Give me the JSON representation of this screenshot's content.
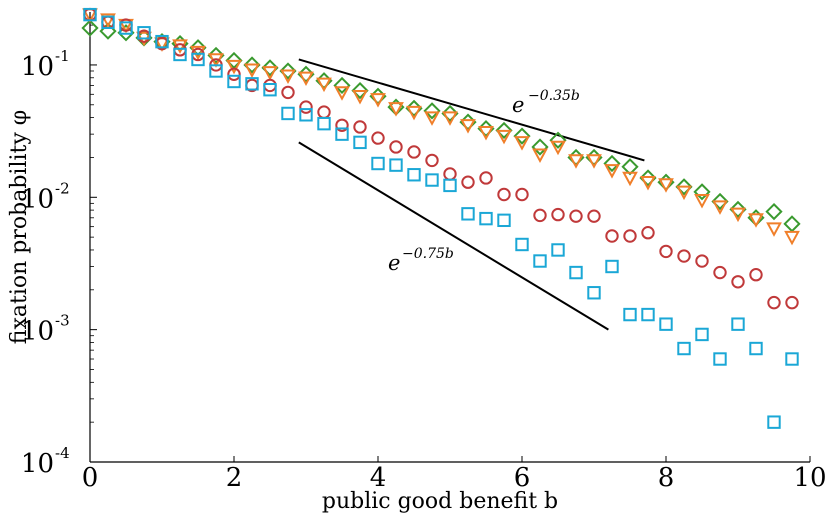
{
  "chart_data": {
    "type": "scatter",
    "xlabel": "public good benefit b",
    "ylabel": "fixation probability φ",
    "xlim": [
      0,
      10
    ],
    "ylim_log10": [
      -4,
      -0.6
    ],
    "yscale": "log",
    "grid": false,
    "x_ticks": [
      "0",
      "2",
      "4",
      "6",
      "8",
      "10"
    ],
    "y_ticks": [
      {
        "base": "10",
        "exp": "-1"
      },
      {
        "base": "10",
        "exp": "-2"
      },
      {
        "base": "10",
        "exp": "-3"
      },
      {
        "base": "10",
        "exp": "-4"
      }
    ],
    "series": [
      {
        "marker": "diamond",
        "color": "#3a9a2f",
        "points": [
          [
            0,
            0.19
          ],
          [
            0.25,
            0.18
          ],
          [
            0.5,
            0.175
          ],
          [
            0.75,
            0.16
          ],
          [
            1,
            0.15
          ],
          [
            1.25,
            0.145
          ],
          [
            1.5,
            0.135
          ],
          [
            1.75,
            0.118
          ],
          [
            2,
            0.108
          ],
          [
            2.25,
            0.1
          ],
          [
            2.5,
            0.095
          ],
          [
            2.75,
            0.09
          ],
          [
            3,
            0.085
          ],
          [
            3.25,
            0.076
          ],
          [
            3.5,
            0.07
          ],
          [
            3.75,
            0.064
          ],
          [
            4,
            0.058
          ],
          [
            4.25,
            0.048
          ],
          [
            4.5,
            0.047
          ],
          [
            4.75,
            0.045
          ],
          [
            5,
            0.043
          ],
          [
            5.25,
            0.037
          ],
          [
            5.5,
            0.033
          ],
          [
            5.75,
            0.032
          ],
          [
            6,
            0.029
          ],
          [
            6.25,
            0.024
          ],
          [
            6.5,
            0.027
          ],
          [
            6.75,
            0.02
          ],
          [
            7,
            0.02
          ],
          [
            7.25,
            0.018
          ],
          [
            7.5,
            0.017
          ],
          [
            7.75,
            0.014
          ],
          [
            8,
            0.013
          ],
          [
            8.25,
            0.012
          ],
          [
            8.5,
            0.011
          ],
          [
            8.75,
            0.0093
          ],
          [
            9,
            0.0081
          ],
          [
            9.25,
            0.007
          ],
          [
            9.5,
            0.0078
          ],
          [
            9.75,
            0.0063
          ]
        ]
      },
      {
        "marker": "triangle-down",
        "color": "#f07f2a",
        "points": [
          [
            0,
            0.24
          ],
          [
            0.25,
            0.22
          ],
          [
            0.5,
            0.2
          ],
          [
            0.75,
            0.16
          ],
          [
            1,
            0.145
          ],
          [
            1.25,
            0.14
          ],
          [
            1.5,
            0.125
          ],
          [
            1.75,
            0.11
          ],
          [
            2,
            0.098
          ],
          [
            2.25,
            0.092
          ],
          [
            2.5,
            0.088
          ],
          [
            2.75,
            0.083
          ],
          [
            3,
            0.08
          ],
          [
            3.25,
            0.072
          ],
          [
            3.5,
            0.062
          ],
          [
            3.75,
            0.058
          ],
          [
            4,
            0.055
          ],
          [
            4.25,
            0.047
          ],
          [
            4.5,
            0.044
          ],
          [
            4.75,
            0.04
          ],
          [
            5,
            0.04
          ],
          [
            5.25,
            0.035
          ],
          [
            5.5,
            0.031
          ],
          [
            5.75,
            0.029
          ],
          [
            6,
            0.026
          ],
          [
            6.25,
            0.021
          ],
          [
            6.5,
            0.024
          ],
          [
            6.75,
            0.019
          ],
          [
            7,
            0.019
          ],
          [
            7.25,
            0.016
          ],
          [
            7.5,
            0.014
          ],
          [
            7.75,
            0.013
          ],
          [
            8,
            0.0125
          ],
          [
            8.25,
            0.011
          ],
          [
            8.5,
            0.0095
          ],
          [
            8.75,
            0.0085
          ],
          [
            9,
            0.0075
          ],
          [
            9.25,
            0.0068
          ],
          [
            9.5,
            0.0058
          ],
          [
            9.75,
            0.005
          ]
        ]
      },
      {
        "marker": "circle",
        "color": "#c0393a",
        "points": [
          [
            0,
            0.24
          ],
          [
            0.25,
            0.21
          ],
          [
            0.5,
            0.2
          ],
          [
            0.75,
            0.165
          ],
          [
            1,
            0.145
          ],
          [
            1.25,
            0.13
          ],
          [
            1.5,
            0.12
          ],
          [
            1.75,
            0.1
          ],
          [
            2,
            0.085
          ],
          [
            2.25,
            0.07
          ],
          [
            2.5,
            0.07
          ],
          [
            2.75,
            0.062
          ],
          [
            3,
            0.048
          ],
          [
            3.25,
            0.044
          ],
          [
            3.5,
            0.035
          ],
          [
            3.75,
            0.034
          ],
          [
            4,
            0.028
          ],
          [
            4.25,
            0.024
          ],
          [
            4.5,
            0.022
          ],
          [
            4.75,
            0.019
          ],
          [
            5,
            0.015
          ],
          [
            5.25,
            0.013
          ],
          [
            5.5,
            0.014
          ],
          [
            5.75,
            0.0105
          ],
          [
            6,
            0.0105
          ],
          [
            6.25,
            0.0073
          ],
          [
            6.5,
            0.0074
          ],
          [
            6.75,
            0.0072
          ],
          [
            7,
            0.0072
          ],
          [
            7.25,
            0.0051
          ],
          [
            7.5,
            0.0051
          ],
          [
            7.75,
            0.0054
          ],
          [
            8,
            0.0039
          ],
          [
            8.25,
            0.0036
          ],
          [
            8.5,
            0.0033
          ],
          [
            8.75,
            0.0027
          ],
          [
            9,
            0.0023
          ],
          [
            9.25,
            0.0026
          ],
          [
            9.5,
            0.0016
          ],
          [
            9.75,
            0.0016
          ]
        ]
      },
      {
        "marker": "square",
        "color": "#1aa7d6",
        "points": [
          [
            0,
            0.24
          ],
          [
            0.25,
            0.21
          ],
          [
            0.5,
            0.19
          ],
          [
            0.75,
            0.175
          ],
          [
            1,
            0.15
          ],
          [
            1.25,
            0.12
          ],
          [
            1.5,
            0.11
          ],
          [
            1.75,
            0.09
          ],
          [
            2,
            0.075
          ],
          [
            2.25,
            0.072
          ],
          [
            2.5,
            0.065
          ],
          [
            2.75,
            0.043
          ],
          [
            3,
            0.042
          ],
          [
            3.25,
            0.036
          ],
          [
            3.5,
            0.03
          ],
          [
            3.75,
            0.026
          ],
          [
            4,
            0.018
          ],
          [
            4.25,
            0.0175
          ],
          [
            4.5,
            0.0148
          ],
          [
            4.75,
            0.0135
          ],
          [
            5,
            0.0123
          ],
          [
            5.25,
            0.0075
          ],
          [
            5.5,
            0.0069
          ],
          [
            5.75,
            0.0067
          ],
          [
            6,
            0.0044
          ],
          [
            6.25,
            0.0033
          ],
          [
            6.5,
            0.004
          ],
          [
            6.75,
            0.0027
          ],
          [
            7,
            0.0019
          ],
          [
            7.25,
            0.003
          ],
          [
            7.5,
            0.0013
          ],
          [
            7.75,
            0.0013
          ],
          [
            8,
            0.0011
          ],
          [
            8.25,
            0.00072
          ],
          [
            8.5,
            0.00092
          ],
          [
            8.75,
            0.0006
          ],
          [
            9,
            0.0011
          ],
          [
            9.25,
            0.00072
          ],
          [
            9.5,
            0.0002
          ],
          [
            9.75,
            0.0006
          ]
        ]
      }
    ],
    "guide_lines": [
      {
        "label_base": "e",
        "label_exp": "−0.35b",
        "from": [
          2.9,
          0.11
        ],
        "to": [
          7.7,
          0.019
        ]
      },
      {
        "label_base": "e",
        "label_exp": "−0.75b",
        "from": [
          2.9,
          0.026
        ],
        "to": [
          7.2,
          0.001
        ]
      }
    ]
  }
}
